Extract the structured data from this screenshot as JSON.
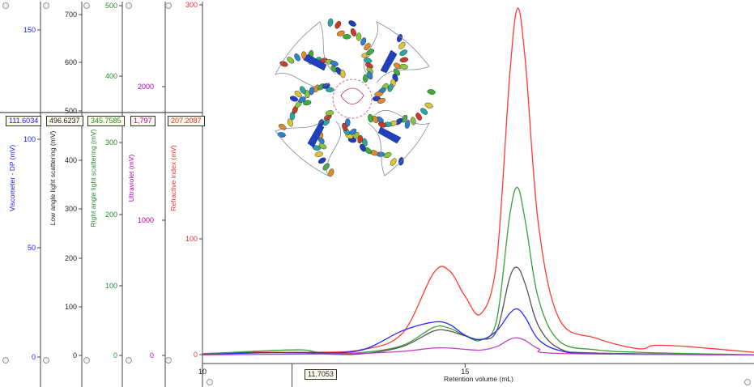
{
  "chart_data": {
    "type": "line",
    "x_axis": {
      "label": "Retention volume (mL)",
      "range": [
        10,
        20.5
      ],
      "ticks": [
        {
          "value": 10,
          "label": "10"
        },
        {
          "value": 15,
          "label": "15"
        }
      ]
    },
    "cursor": {
      "x": 11.7053,
      "label": "11.7053"
    },
    "y_axes": [
      {
        "id": "dp",
        "label": "Viscometer - DP (mV)",
        "color": "#1a1aff",
        "readout": "111.6034",
        "top_ticks": [
          "150"
        ],
        "bottom_ticks": [
          "100",
          "50",
          "0"
        ]
      },
      {
        "id": "lals",
        "label": "Low angle light scattering (mV)",
        "color": "#222222",
        "readout": "496.6237",
        "top_ticks": [
          "700",
          "600",
          "500"
        ],
        "bottom_ticks": [
          "400",
          "300",
          "200",
          "100",
          "0"
        ]
      },
      {
        "id": "rals",
        "label": "Right angle light scattering (mV)",
        "color": "#2b8a2b",
        "readout": "345.7585",
        "top_ticks": [
          "500",
          "400"
        ],
        "bottom_ticks": [
          "300",
          "200",
          "100",
          "0"
        ]
      },
      {
        "id": "uv",
        "label": "Ultraviolet (mV)",
        "color": "#b000b0",
        "readout": "1,797",
        "top_ticks": [
          "2000"
        ],
        "bottom_ticks": [
          "1000",
          "0"
        ]
      },
      {
        "id": "ri",
        "label": "Refractive index (mV)",
        "color": "#e0322a",
        "readout": "207.2087",
        "top_ticks": [
          "300"
        ],
        "bottom_ticks": [
          "100",
          "0"
        ]
      }
    ],
    "series": [
      {
        "axis": "ri",
        "color": "#ff3b30",
        "points": [
          [
            10,
            1
          ],
          [
            11,
            2
          ],
          [
            12,
            2
          ],
          [
            13,
            4
          ],
          [
            13.8,
            18
          ],
          [
            14.4,
            70
          ],
          [
            14.7,
            72
          ],
          [
            15.0,
            50
          ],
          [
            15.3,
            35
          ],
          [
            15.6,
            80
          ],
          [
            15.85,
            240
          ],
          [
            16.0,
            297
          ],
          [
            16.15,
            250
          ],
          [
            16.4,
            110
          ],
          [
            16.8,
            30
          ],
          [
            17.5,
            14
          ],
          [
            18.3,
            5
          ],
          [
            18.6,
            8
          ],
          [
            19.2,
            7
          ],
          [
            20.5,
            2
          ]
        ]
      },
      {
        "axis": "rals",
        "color": "#3aa03a",
        "points": [
          [
            10,
            2
          ],
          [
            11,
            6
          ],
          [
            11.9,
            8
          ],
          [
            12.3,
            3
          ],
          [
            13,
            4
          ],
          [
            13.8,
            14
          ],
          [
            14.4,
            40
          ],
          [
            14.7,
            39
          ],
          [
            15.0,
            28
          ],
          [
            15.3,
            22
          ],
          [
            15.6,
            50
          ],
          [
            15.85,
            200
          ],
          [
            16.0,
            240
          ],
          [
            16.15,
            190
          ],
          [
            16.4,
            80
          ],
          [
            16.8,
            20
          ],
          [
            17.5,
            8
          ],
          [
            18.5,
            4
          ],
          [
            20.5,
            1
          ]
        ]
      },
      {
        "axis": "lals",
        "color": "#555555",
        "points": [
          [
            10,
            2
          ],
          [
            11,
            5
          ],
          [
            11.9,
            6
          ],
          [
            12.3,
            3
          ],
          [
            13,
            3
          ],
          [
            13.8,
            18
          ],
          [
            14.4,
            50
          ],
          [
            14.7,
            50
          ],
          [
            15.0,
            40
          ],
          [
            15.3,
            33
          ],
          [
            15.6,
            50
          ],
          [
            15.85,
            160
          ],
          [
            16.0,
            180
          ],
          [
            16.15,
            145
          ],
          [
            16.4,
            60
          ],
          [
            16.8,
            14
          ],
          [
            17.5,
            5
          ],
          [
            20.5,
            1
          ]
        ]
      },
      {
        "axis": "dp",
        "color": "#2626ff",
        "points": [
          [
            10,
            1
          ],
          [
            11,
            2
          ],
          [
            12,
            2
          ],
          [
            13,
            3
          ],
          [
            13.8,
            12
          ],
          [
            14.4,
            16
          ],
          [
            14.7,
            15
          ],
          [
            15.0,
            10
          ],
          [
            15.3,
            8
          ],
          [
            15.6,
            12
          ],
          [
            15.85,
            20
          ],
          [
            16.0,
            22
          ],
          [
            16.15,
            18
          ],
          [
            16.4,
            8
          ],
          [
            16.8,
            3
          ],
          [
            17.5,
            1.5
          ],
          [
            20.5,
            1
          ]
        ]
      },
      {
        "axis": "uv",
        "color": "#c040c0",
        "points": [
          [
            10,
            5
          ],
          [
            12,
            10
          ],
          [
            13,
            15
          ],
          [
            13.8,
            30
          ],
          [
            14.4,
            55
          ],
          [
            14.7,
            55
          ],
          [
            15.0,
            45
          ],
          [
            15.3,
            40
          ],
          [
            15.6,
            65
          ],
          [
            15.85,
            120
          ],
          [
            16.0,
            130
          ],
          [
            16.15,
            110
          ],
          [
            16.4,
            50
          ],
          [
            16.8,
            15
          ],
          [
            20.5,
            5
          ]
        ]
      }
    ]
  }
}
